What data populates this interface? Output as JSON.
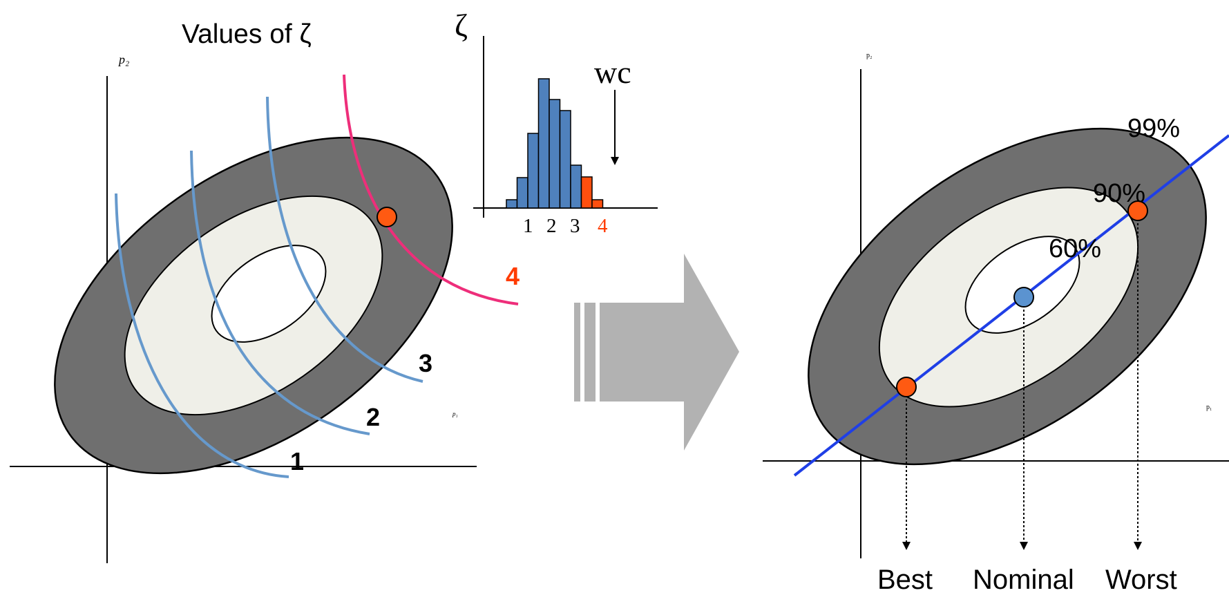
{
  "left_panel": {
    "title": "Values of ζ",
    "axis_y_label": "p₂",
    "axis_x_label": "p₁",
    "contour_labels": [
      "1",
      "2",
      "3",
      "4"
    ]
  },
  "histogram": {
    "axis_label": "ζ",
    "wc_label": "wc",
    "ticks": [
      "1",
      "2",
      "3",
      "4"
    ]
  },
  "right_panel": {
    "axis_y_label": "p₂",
    "axis_x_label": "p₁",
    "level_labels": [
      "99%",
      "90%",
      "60%"
    ],
    "bottom_labels": [
      "Best",
      "Nominal",
      "Worst"
    ]
  },
  "colors": {
    "outer_region": "#6f6f6f",
    "middle_region": "#efefe8",
    "inner_region": "#ffffff",
    "contour_blue": "#6699cc",
    "contour_pink": "#ee2e7a",
    "marker_orange": "#ff5a12",
    "marker_blue": "#5b93d0",
    "bar_blue": "#4f81bd",
    "bar_orange": "#ff4f0f",
    "wc_line_blue": "#1f3fe6",
    "arrow_gray": "#b2b2b2",
    "label_red": "#ff3c00"
  },
  "icons": [
    "block-arrow-right-icon",
    "down-arrow-icon"
  ]
}
